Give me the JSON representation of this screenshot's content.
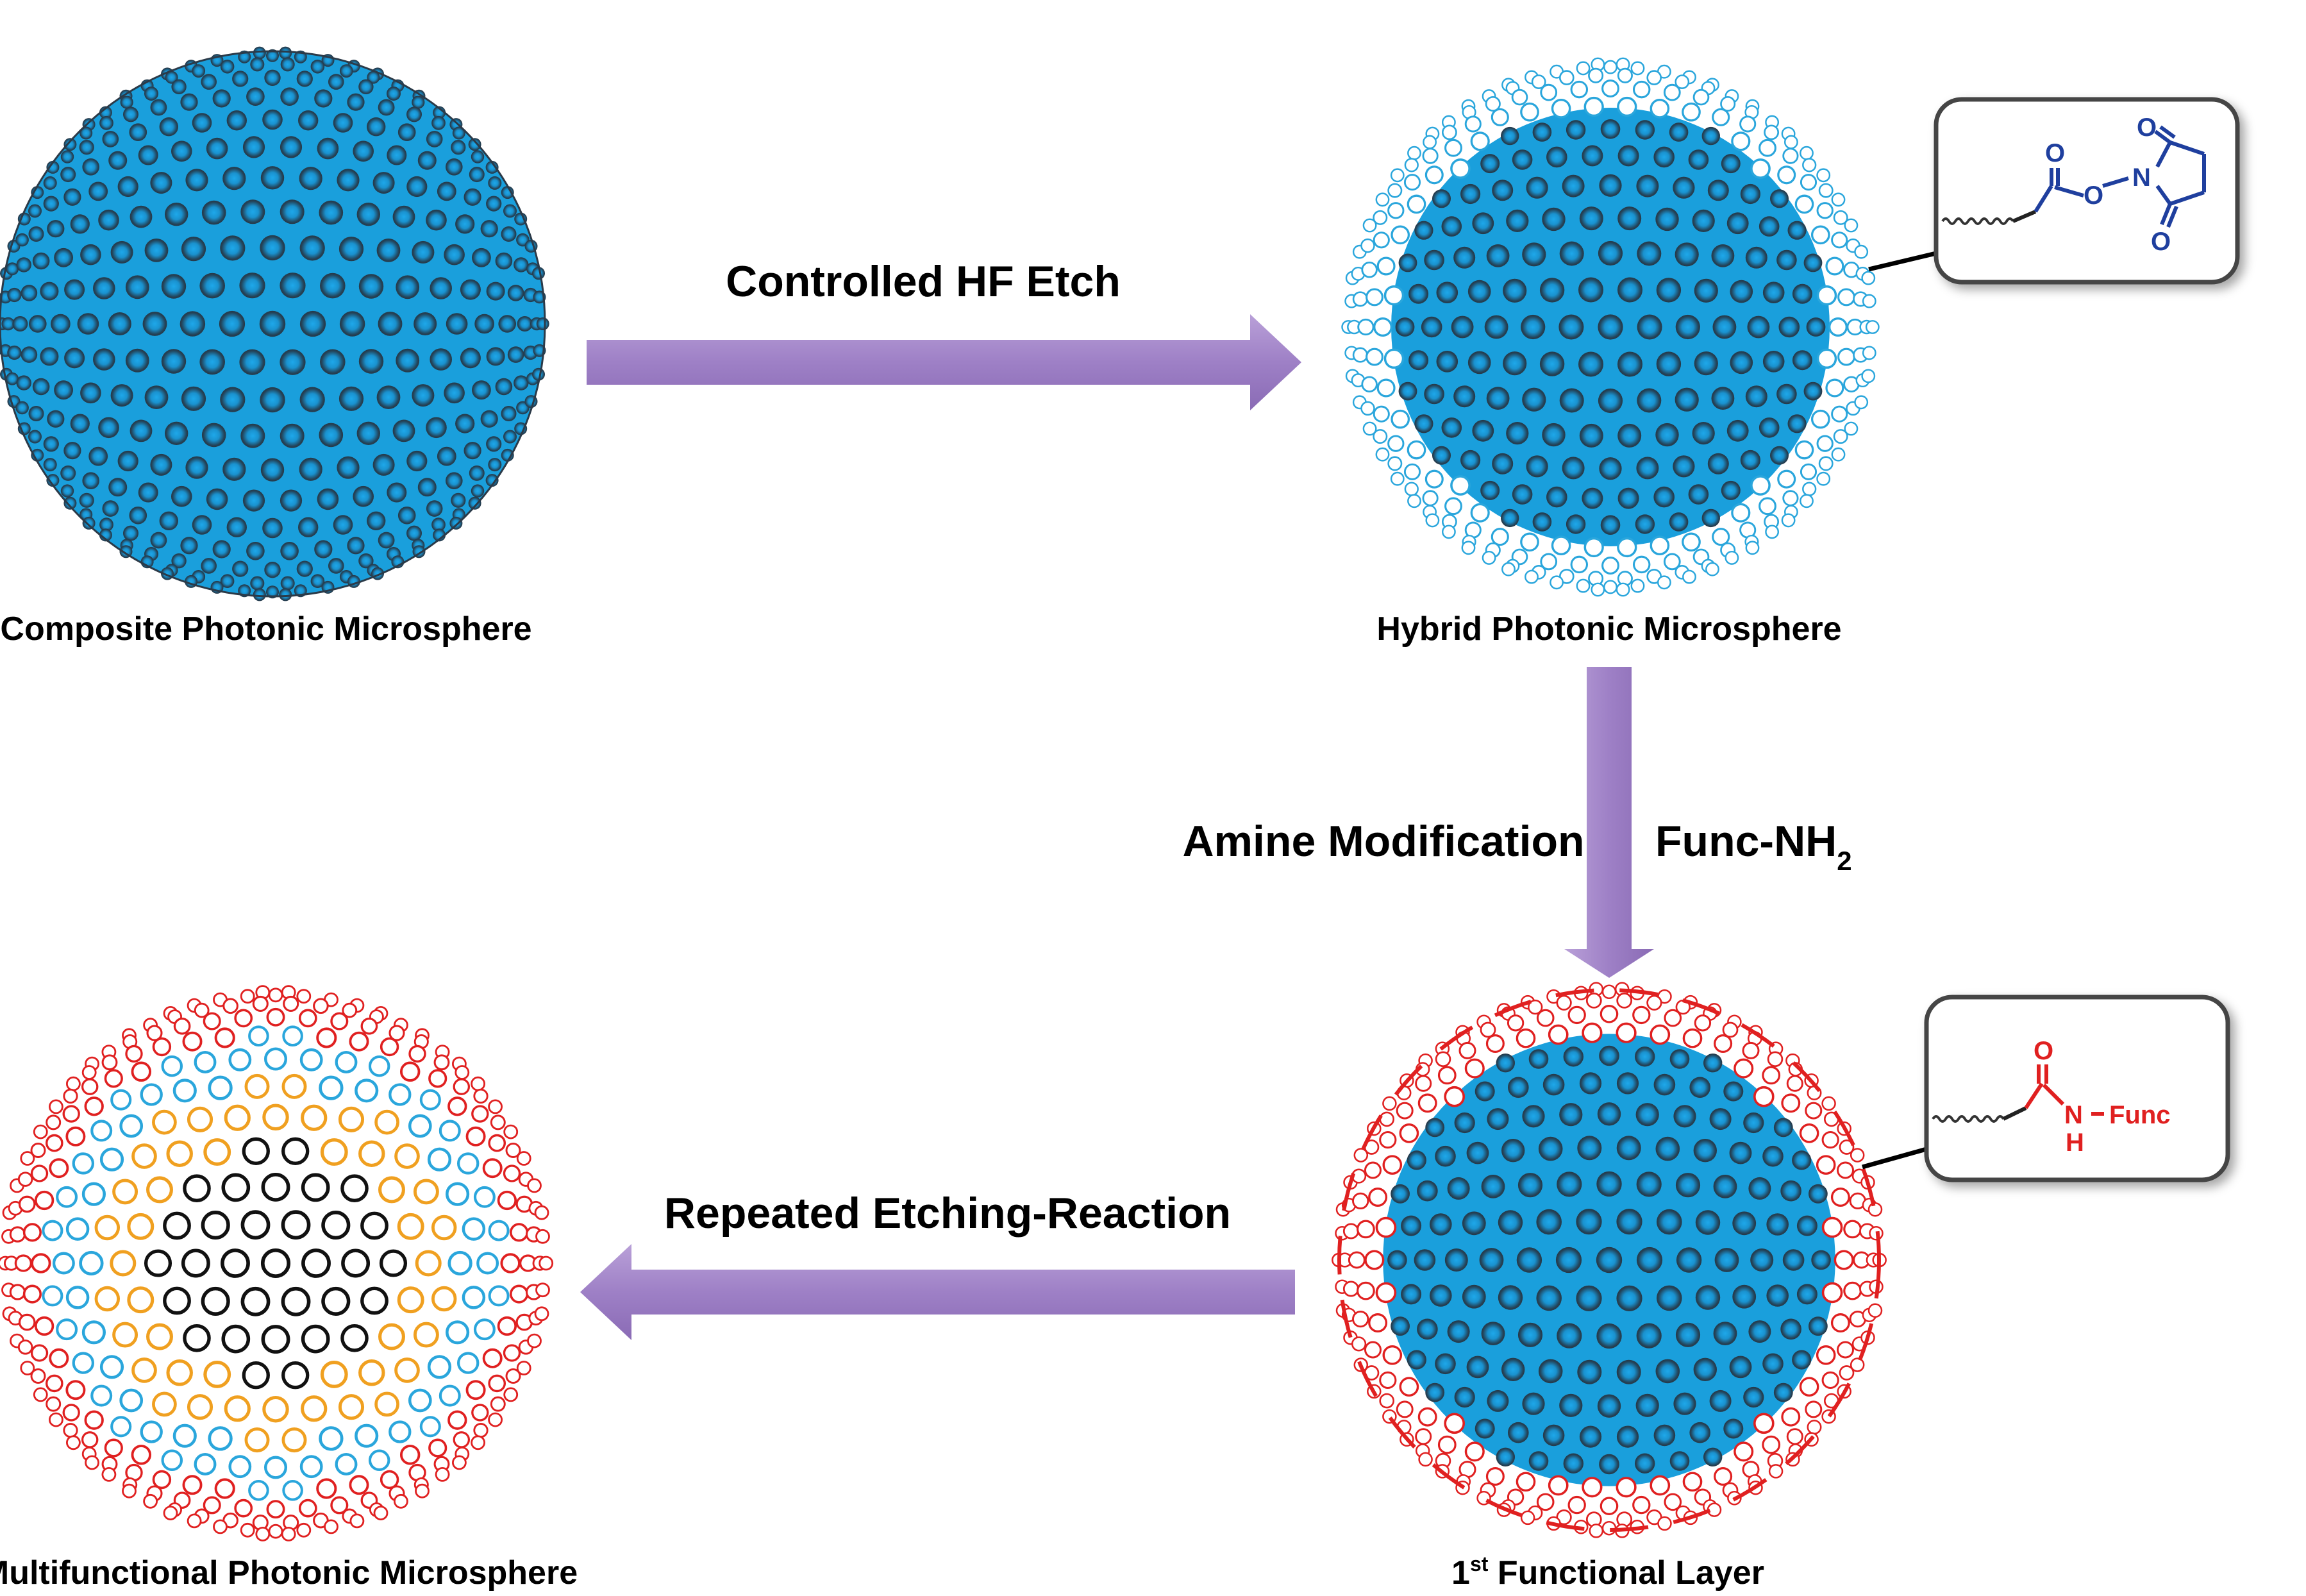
{
  "labels": {
    "composite": "Composite Photonic Microsphere",
    "hybrid": "Hybrid Photonic Microsphere",
    "first_layer_num": "1",
    "first_layer_sup": "st",
    "first_layer_rest": " Functional Layer",
    "multifunctional": "Multifunctional Photonic Microsphere"
  },
  "steps": {
    "etch": "Controlled HF Etch",
    "amine": "Amine Modification",
    "reagent_main": "Func-NH",
    "reagent_sub": "2",
    "repeat": "Repeated Etching-Reaction"
  },
  "nhs_ester": {
    "o_carbonyl": "O",
    "o_ester": "O",
    "n": "N",
    "o_ring_top": "O",
    "o_ring_bottom": "O"
  },
  "amide": {
    "o": "O",
    "n": "N",
    "h": "H",
    "func": "Func"
  },
  "colors": {
    "bead_core": "#1a9fdc",
    "bead_shade": "#2b3a48",
    "etched_blue": "#2aa6dc",
    "etched_red": "#e02020",
    "etched_orange": "#f0a020",
    "arrow": "#9b7ec0",
    "nhs_blue": "#1f3f9e",
    "amide_red": "#e02020"
  }
}
